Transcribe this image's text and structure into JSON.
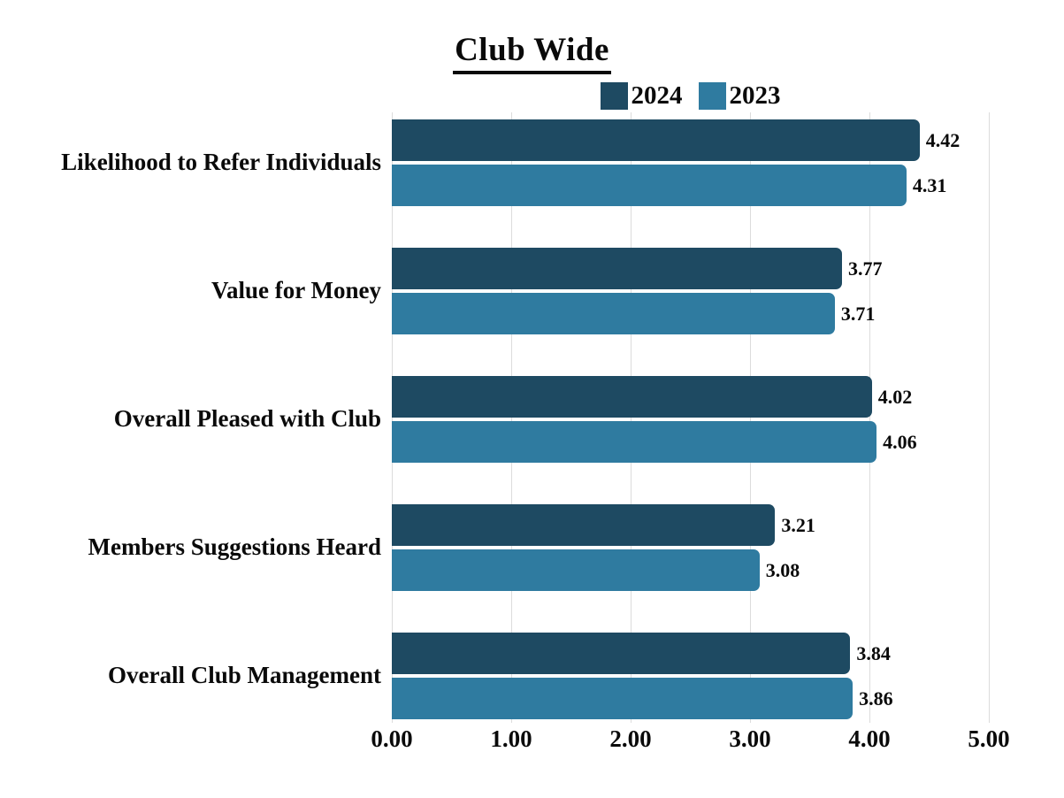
{
  "title": "Club Wide",
  "chart_data": {
    "type": "bar",
    "orientation": "horizontal",
    "title": "Club Wide",
    "categories": [
      "Likelihood to Refer Individuals",
      "Value for Money",
      "Overall Pleased with Club",
      "Members Suggestions Heard",
      "Overall Club Management"
    ],
    "series": [
      {
        "name": "2024",
        "color": "#1e4a62",
        "values": [
          4.42,
          3.77,
          4.02,
          3.21,
          3.84
        ]
      },
      {
        "name": "2023",
        "color": "#2f7ba0",
        "values": [
          4.31,
          3.71,
          4.06,
          3.08,
          3.86
        ]
      }
    ],
    "xlim": [
      0,
      5
    ],
    "x_ticks": [
      "0.00",
      "1.00",
      "2.00",
      "3.00",
      "4.00",
      "5.00"
    ],
    "value_label_decimals": 2,
    "grid": true,
    "legend_position": "top"
  },
  "colors": {
    "background": "#ffffff",
    "gridline": "#dcdcdc",
    "text": "#0a0a0a"
  }
}
